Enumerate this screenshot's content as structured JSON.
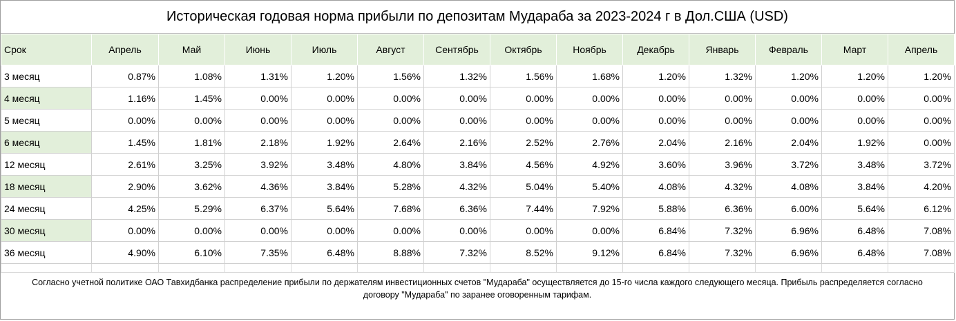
{
  "title": "Историческая годовая норма прибыли по депозитам Мудараба за 2023-2024 г в Дол.США (USD)",
  "header": {
    "term_label": "Срок",
    "months": [
      "Апрель",
      "Май",
      "Июнь",
      "Июль",
      "Август",
      "Сентябрь",
      "Октябрь",
      "Ноябрь",
      "Декабрь",
      "Январь",
      "Февраль",
      "Март",
      "Апрель"
    ]
  },
  "rows": [
    {
      "label": "3 месяц",
      "values": [
        "0.87%",
        "1.08%",
        "1.31%",
        "1.20%",
        "1.56%",
        "1.32%",
        "1.56%",
        "1.68%",
        "1.20%",
        "1.32%",
        "1.20%",
        "1.20%",
        "1.20%"
      ]
    },
    {
      "label": "4 месяц",
      "values": [
        "1.16%",
        "1.45%",
        "0.00%",
        "0.00%",
        "0.00%",
        "0.00%",
        "0.00%",
        "0.00%",
        "0.00%",
        "0.00%",
        "0.00%",
        "0.00%",
        "0.00%"
      ]
    },
    {
      "label": "5 месяц",
      "values": [
        "0.00%",
        "0.00%",
        "0.00%",
        "0.00%",
        "0.00%",
        "0.00%",
        "0.00%",
        "0.00%",
        "0.00%",
        "0.00%",
        "0.00%",
        "0.00%",
        "0.00%"
      ]
    },
    {
      "label": "6 месяц",
      "values": [
        "1.45%",
        "1.81%",
        "2.18%",
        "1.92%",
        "2.64%",
        "2.16%",
        "2.52%",
        "2.76%",
        "2.04%",
        "2.16%",
        "2.04%",
        "1.92%",
        "0.00%"
      ]
    },
    {
      "label": "12 месяц",
      "values": [
        "2.61%",
        "3.25%",
        "3.92%",
        "3.48%",
        "4.80%",
        "3.84%",
        "4.56%",
        "4.92%",
        "3.60%",
        "3.96%",
        "3.72%",
        "3.48%",
        "3.72%"
      ]
    },
    {
      "label": "18 месяц",
      "values": [
        "2.90%",
        "3.62%",
        "4.36%",
        "3.84%",
        "5.28%",
        "4.32%",
        "5.04%",
        "5.40%",
        "4.08%",
        "4.32%",
        "4.08%",
        "3.84%",
        "4.20%"
      ]
    },
    {
      "label": "24 месяц",
      "values": [
        "4.25%",
        "5.29%",
        "6.37%",
        "5.64%",
        "7.68%",
        "6.36%",
        "7.44%",
        "7.92%",
        "5.88%",
        "6.36%",
        "6.00%",
        "5.64%",
        "6.12%"
      ]
    },
    {
      "label": "30 месяц",
      "values": [
        "0.00%",
        "0.00%",
        "0.00%",
        "0.00%",
        "0.00%",
        "0.00%",
        "0.00%",
        "0.00%",
        "6.84%",
        "7.32%",
        "6.96%",
        "6.48%",
        "7.08%"
      ]
    },
    {
      "label": "36 месяц",
      "values": [
        "4.90%",
        "6.10%",
        "7.35%",
        "6.48%",
        "8.88%",
        "7.32%",
        "8.52%",
        "9.12%",
        "6.84%",
        "7.32%",
        "6.96%",
        "6.48%",
        "7.08%"
      ]
    }
  ],
  "footnote": "Согласно учетной политике ОАО Тавхидбанка распределение прибыли по держателям инвестиционных счетов \"Мудараба\" осуществляется до 15-го числа каждого следующего месяца.  Прибыль распределяется согласно договору \"Мудараба\" по заранее оговоренным тарифам.",
  "colors": {
    "header_fill": "#e2efda",
    "grid": "#d0d0d0"
  }
}
